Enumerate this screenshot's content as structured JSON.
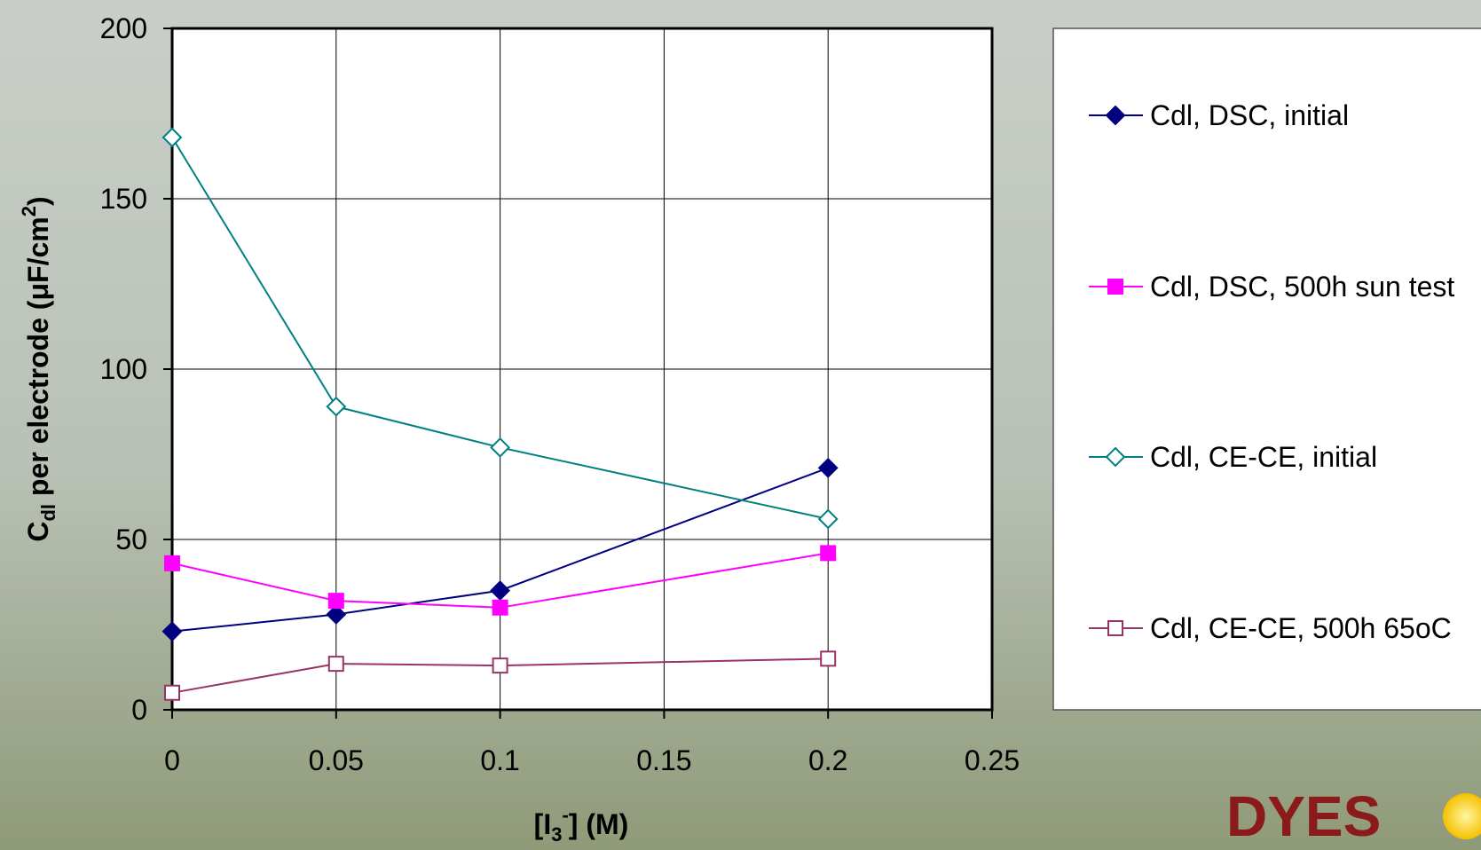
{
  "chart_data": {
    "type": "line",
    "x": [
      0,
      0.05,
      0.1,
      0.2
    ],
    "series": [
      {
        "name": "Cdl, DSC, initial",
        "color": "#000080",
        "marker": "diamond",
        "filled": true,
        "values": [
          23,
          28,
          35,
          71
        ]
      },
      {
        "name": "Cdl, DSC, 500h sun test",
        "color": "#ff00ff",
        "marker": "square",
        "filled": true,
        "values": [
          43,
          32,
          30,
          46
        ]
      },
      {
        "name": "Cdl, CE-CE, initial",
        "color": "#008080",
        "marker": "diamond",
        "filled": false,
        "values": [
          168,
          89,
          77,
          56
        ]
      },
      {
        "name": "Cdl, CE-CE, 500h 65oC",
        "color": "#993366",
        "marker": "square",
        "filled": false,
        "values": [
          5,
          13.5,
          13,
          15
        ]
      }
    ],
    "x_label_parts": [
      "[I",
      "3",
      "-",
      "] (M)"
    ],
    "y_label_parts": [
      "C",
      "dl",
      " per electrode (μF/cm",
      "2",
      ")"
    ],
    "xlim": [
      0,
      0.25
    ],
    "xticks": [
      0,
      0.05,
      0.1,
      0.15,
      0.2,
      0.25
    ],
    "ylim": [
      0,
      200
    ],
    "yticks": [
      0,
      50,
      100,
      150,
      200
    ],
    "grid": true,
    "legend": "right"
  },
  "logo": "DYES"
}
